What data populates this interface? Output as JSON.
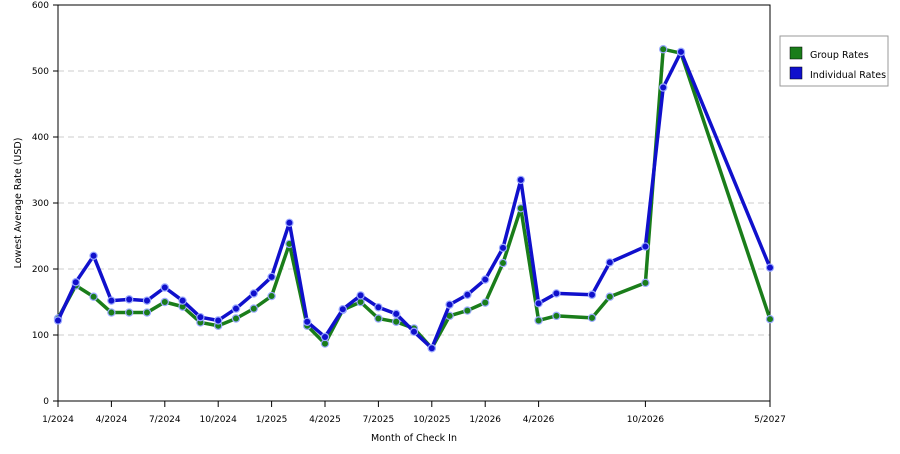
{
  "chart_data": {
    "type": "line",
    "title": "",
    "xlabel": "Month of Check In",
    "ylabel": "Lowest Average Rate (USD)",
    "ylim": [
      0,
      600
    ],
    "yticks": [
      0,
      100,
      200,
      300,
      400,
      500,
      600
    ],
    "grid": true,
    "legend_position": "right",
    "months": [
      "1/2024",
      "2/2024",
      "3/2024",
      "4/2024",
      "5/2024",
      "6/2024",
      "7/2024",
      "8/2024",
      "9/2024",
      "10/2024",
      "11/2024",
      "12/2024",
      "1/2025",
      "2/2025",
      "3/2025",
      "4/2025",
      "5/2025",
      "6/2025",
      "7/2025",
      "8/2025",
      "9/2025",
      "10/2025",
      "11/2025",
      "12/2025",
      "1/2026",
      "2/2026",
      "3/2026",
      "4/2026",
      "5/2026",
      "6/2026",
      "7/2026",
      "8/2026",
      "9/2026",
      "10/2026",
      "11/2026",
      "12/2026",
      "1/2027",
      "2/2027",
      "3/2027",
      "4/2027",
      "5/2027"
    ],
    "xtick_labels": [
      "1/2024",
      "4/2024",
      "7/2024",
      "10/2024",
      "1/2025",
      "4/2025",
      "7/2025",
      "10/2025",
      "1/2026",
      "4/2026",
      "10/2026",
      "5/2027"
    ],
    "series": [
      {
        "name": "Group Rates",
        "color": "#1a7d1a",
        "points": [
          {
            "x": "1/2024",
            "y": 125
          },
          {
            "x": "2/2024",
            "y": 175
          },
          {
            "x": "3/2024",
            "y": 158
          },
          {
            "x": "4/2024",
            "y": 134
          },
          {
            "x": "5/2024",
            "y": 134
          },
          {
            "x": "6/2024",
            "y": 134
          },
          {
            "x": "7/2024",
            "y": 150
          },
          {
            "x": "8/2024",
            "y": 143
          },
          {
            "x": "9/2024",
            "y": 119
          },
          {
            "x": "10/2024",
            "y": 114
          },
          {
            "x": "11/2024",
            "y": 125
          },
          {
            "x": "12/2024",
            "y": 140
          },
          {
            "x": "1/2025",
            "y": 159
          },
          {
            "x": "2/2025",
            "y": 238
          },
          {
            "x": "3/2025",
            "y": 114
          },
          {
            "x": "4/2025",
            "y": 87
          },
          {
            "x": "5/2025",
            "y": 138
          },
          {
            "x": "6/2025",
            "y": 150
          },
          {
            "x": "7/2025",
            "y": 125
          },
          {
            "x": "8/2025",
            "y": 120
          },
          {
            "x": "9/2025",
            "y": 110
          },
          {
            "x": "10/2025",
            "y": 80
          },
          {
            "x": "11/2025",
            "y": 129
          },
          {
            "x": "12/2025",
            "y": 137
          },
          {
            "x": "1/2026",
            "y": 149
          },
          {
            "x": "2/2026",
            "y": 209
          },
          {
            "x": "3/2026",
            "y": 292
          },
          {
            "x": "4/2026",
            "y": 122
          },
          {
            "x": "5/2026",
            "y": 129
          },
          {
            "x": "7/2026",
            "y": 126
          },
          {
            "x": "8/2026",
            "y": 158
          },
          {
            "x": "10/2026",
            "y": 179
          },
          {
            "x": "11/2026",
            "y": 533
          },
          {
            "x": "12/2026",
            "y": 527
          },
          {
            "x": "5/2027",
            "y": 124
          }
        ]
      },
      {
        "name": "Individual Rates",
        "color": "#1010cc",
        "points": [
          {
            "x": "1/2024",
            "y": 122
          },
          {
            "x": "2/2024",
            "y": 180
          },
          {
            "x": "3/2024",
            "y": 220
          },
          {
            "x": "4/2024",
            "y": 152
          },
          {
            "x": "5/2024",
            "y": 154
          },
          {
            "x": "6/2024",
            "y": 152
          },
          {
            "x": "7/2024",
            "y": 172
          },
          {
            "x": "8/2024",
            "y": 152
          },
          {
            "x": "9/2024",
            "y": 127
          },
          {
            "x": "10/2024",
            "y": 122
          },
          {
            "x": "11/2024",
            "y": 140
          },
          {
            "x": "12/2024",
            "y": 163
          },
          {
            "x": "1/2025",
            "y": 188
          },
          {
            "x": "2/2025",
            "y": 270
          },
          {
            "x": "3/2025",
            "y": 120
          },
          {
            "x": "4/2025",
            "y": 97
          },
          {
            "x": "5/2025",
            "y": 139
          },
          {
            "x": "6/2025",
            "y": 160
          },
          {
            "x": "7/2025",
            "y": 142
          },
          {
            "x": "8/2025",
            "y": 132
          },
          {
            "x": "9/2025",
            "y": 105
          },
          {
            "x": "10/2025",
            "y": 80
          },
          {
            "x": "11/2025",
            "y": 146
          },
          {
            "x": "12/2025",
            "y": 161
          },
          {
            "x": "1/2026",
            "y": 184
          },
          {
            "x": "2/2026",
            "y": 232
          },
          {
            "x": "3/2026",
            "y": 335
          },
          {
            "x": "4/2026",
            "y": 148
          },
          {
            "x": "5/2026",
            "y": 163
          },
          {
            "x": "7/2026",
            "y": 161
          },
          {
            "x": "8/2026",
            "y": 210
          },
          {
            "x": "10/2026",
            "y": 234
          },
          {
            "x": "11/2026",
            "y": 475
          },
          {
            "x": "12/2026",
            "y": 529
          },
          {
            "x": "5/2027",
            "y": 202
          }
        ]
      }
    ]
  }
}
